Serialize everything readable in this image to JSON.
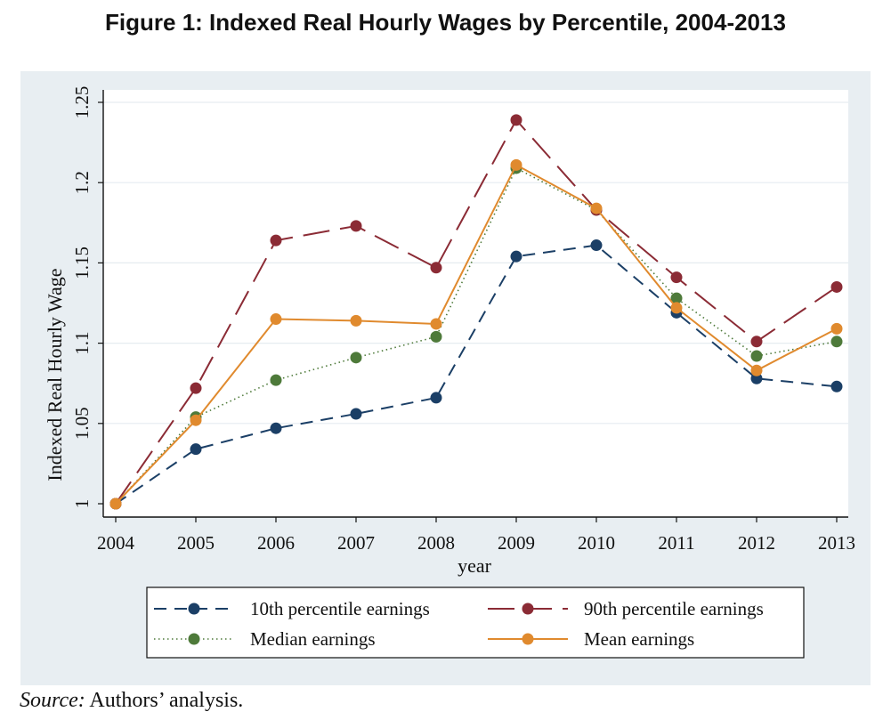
{
  "title": "Figure 1: Indexed Real Hourly Wages by Percentile, 2004-2013",
  "source": {
    "label": "Source:",
    "text": " Authors’ analysis."
  },
  "chart_data": {
    "type": "line",
    "title": "Figure 1: Indexed Real Hourly Wages by Percentile, 2004-2013",
    "xlabel": "year",
    "ylabel": "Indexed Real Hourly Wage",
    "x": [
      2004,
      2005,
      2006,
      2007,
      2008,
      2009,
      2010,
      2011,
      2012,
      2013
    ],
    "xlim": [
      2004,
      2013
    ],
    "ylim": [
      1,
      1.25
    ],
    "yticks": [
      1,
      1.05,
      1.1,
      1.15,
      1.2,
      1.25
    ],
    "ytick_labels": [
      "1",
      "1.05",
      "1.1",
      "1.15",
      "1.2",
      "1.25"
    ],
    "grid": true,
    "legend_position": "bottom",
    "series": [
      {
        "name": "10th percentile earnings",
        "color": "#1b3f66",
        "dash": "dashed",
        "values": [
          1.0,
          1.034,
          1.047,
          1.056,
          1.066,
          1.154,
          1.161,
          1.119,
          1.078,
          1.073
        ]
      },
      {
        "name": "90th percentile earnings",
        "color": "#8b2b35",
        "dash": "longdash",
        "values": [
          1.0,
          1.072,
          1.164,
          1.173,
          1.147,
          1.239,
          1.183,
          1.141,
          1.101,
          1.135
        ]
      },
      {
        "name": "Median earnings",
        "color": "#4e7a3a",
        "dash": "dotted",
        "values": [
          1.0,
          1.054,
          1.077,
          1.091,
          1.104,
          1.209,
          1.183,
          1.128,
          1.092,
          1.101
        ]
      },
      {
        "name": "Mean earnings",
        "color": "#e08a2e",
        "dash": "solid",
        "values": [
          1.0,
          1.052,
          1.115,
          1.114,
          1.112,
          1.211,
          1.184,
          1.122,
          1.083,
          1.109
        ]
      }
    ]
  }
}
